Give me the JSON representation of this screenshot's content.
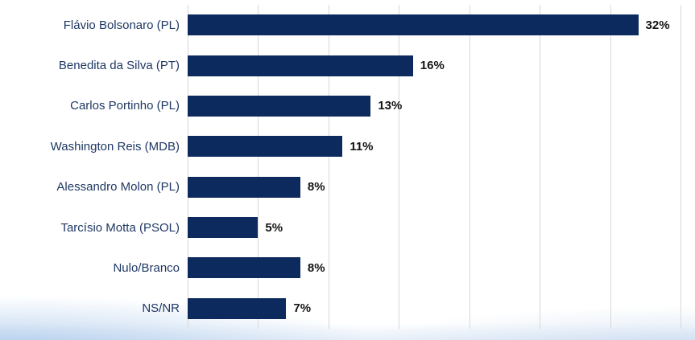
{
  "chart_data": {
    "type": "bar",
    "orientation": "horizontal",
    "categories": [
      "Flávio Bolsonaro (PL)",
      "Benedita da Silva (PT)",
      "Carlos Portinho (PL)",
      "Washington Reis (MDB)",
      "Alessandro Molon (PL)",
      "Tarcísio Motta (PSOL)",
      "Nulo/Branco",
      "NS/NR"
    ],
    "values": [
      32,
      16,
      13,
      11,
      8,
      5,
      8,
      7
    ],
    "value_labels": [
      "32%",
      "16%",
      "13%",
      "11%",
      "8%",
      "5%",
      "8%",
      "7%"
    ],
    "xlim": [
      0,
      35
    ],
    "gridline_step": 5,
    "grid": true,
    "legend": false,
    "bar_color": "#0d2a5f",
    "category_label_color": "#1f3864",
    "value_label_color": "#141414",
    "gridline_color": "#d8d8d8",
    "background_color": "#ffffff"
  }
}
